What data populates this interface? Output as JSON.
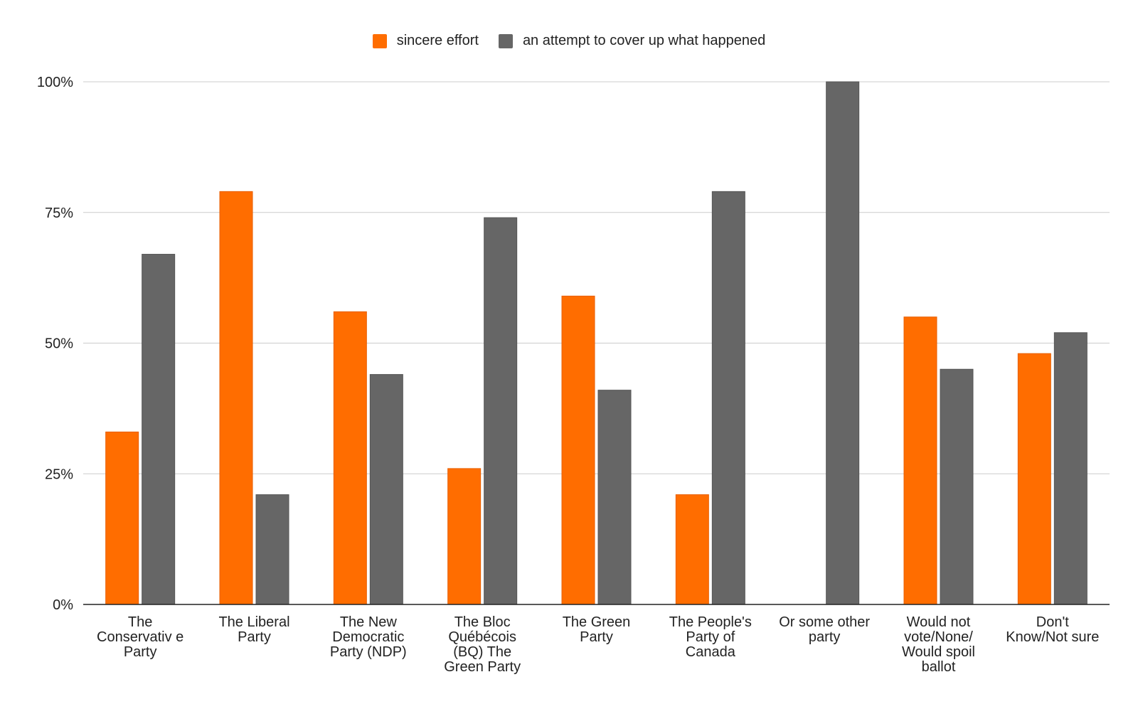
{
  "chart_data": {
    "type": "bar",
    "categories": [
      [
        "The",
        "Conservativ e",
        "Party"
      ],
      [
        "The Liberal",
        "Party"
      ],
      [
        "The New",
        "Democratic",
        "Party (NDP)"
      ],
      [
        "The Bloc",
        "Québécois",
        "(BQ) The",
        "Green Party"
      ],
      [
        "The Green",
        "Party"
      ],
      [
        "The People's",
        "Party of",
        "Canada"
      ],
      [
        "Or some other",
        "party"
      ],
      [
        "Would not",
        "vote/None/",
        "Would spoil",
        "ballot"
      ],
      [
        "Don't",
        "Know/Not sure"
      ]
    ],
    "series": [
      {
        "name": "sincere effort",
        "color": "#ff6d00",
        "values": [
          33,
          79,
          56,
          26,
          59,
          21,
          0,
          55,
          48
        ]
      },
      {
        "name": "an attempt to cover up what happened",
        "color": "#666666",
        "values": [
          67,
          21,
          44,
          74,
          41,
          79,
          100,
          45,
          52
        ]
      }
    ],
    "yticks": [
      "0%",
      "25%",
      "50%",
      "75%",
      "100%"
    ],
    "ylim": [
      0,
      100
    ],
    "grid": true,
    "legend_position": "top-center",
    "title": "",
    "xlabel": "",
    "ylabel": ""
  }
}
